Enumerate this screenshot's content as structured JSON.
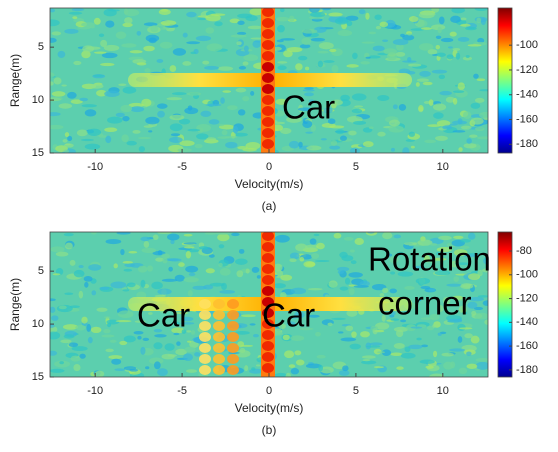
{
  "chart_data": [
    {
      "type": "heatmap",
      "caption": "(a)",
      "x_label": "Velocity(m/s)",
      "y_label": "Range(m)",
      "xlim": [
        -12.6,
        12.6
      ],
      "xticks": [
        -10,
        -5,
        0,
        5,
        10
      ],
      "ylim": [
        1.3,
        15
      ],
      "yticks": [
        5,
        10,
        15
      ],
      "y_inverted": true,
      "colorbar": {
        "lim": [
          -187,
          -70
        ],
        "ticks": [
          -100,
          -120,
          -140,
          -160,
          -180
        ]
      },
      "annotations": [
        "Car"
      ]
    },
    {
      "type": "heatmap",
      "caption": "(b)",
      "x_label": "Velocity(m/s)",
      "y_label": "Range(m)",
      "xlim": [
        -12.6,
        12.6
      ],
      "xticks": [
        -10,
        -5,
        0,
        5,
        10
      ],
      "ylim": [
        1.3,
        15
      ],
      "yticks": [
        5,
        10,
        15
      ],
      "y_inverted": true,
      "colorbar": {
        "lim": [
          -186,
          -64
        ],
        "ticks": [
          -80,
          -100,
          -120,
          -140,
          -160,
          -180
        ]
      },
      "annotations": [
        "Car",
        "Car",
        "Rotation",
        "corner"
      ]
    }
  ]
}
